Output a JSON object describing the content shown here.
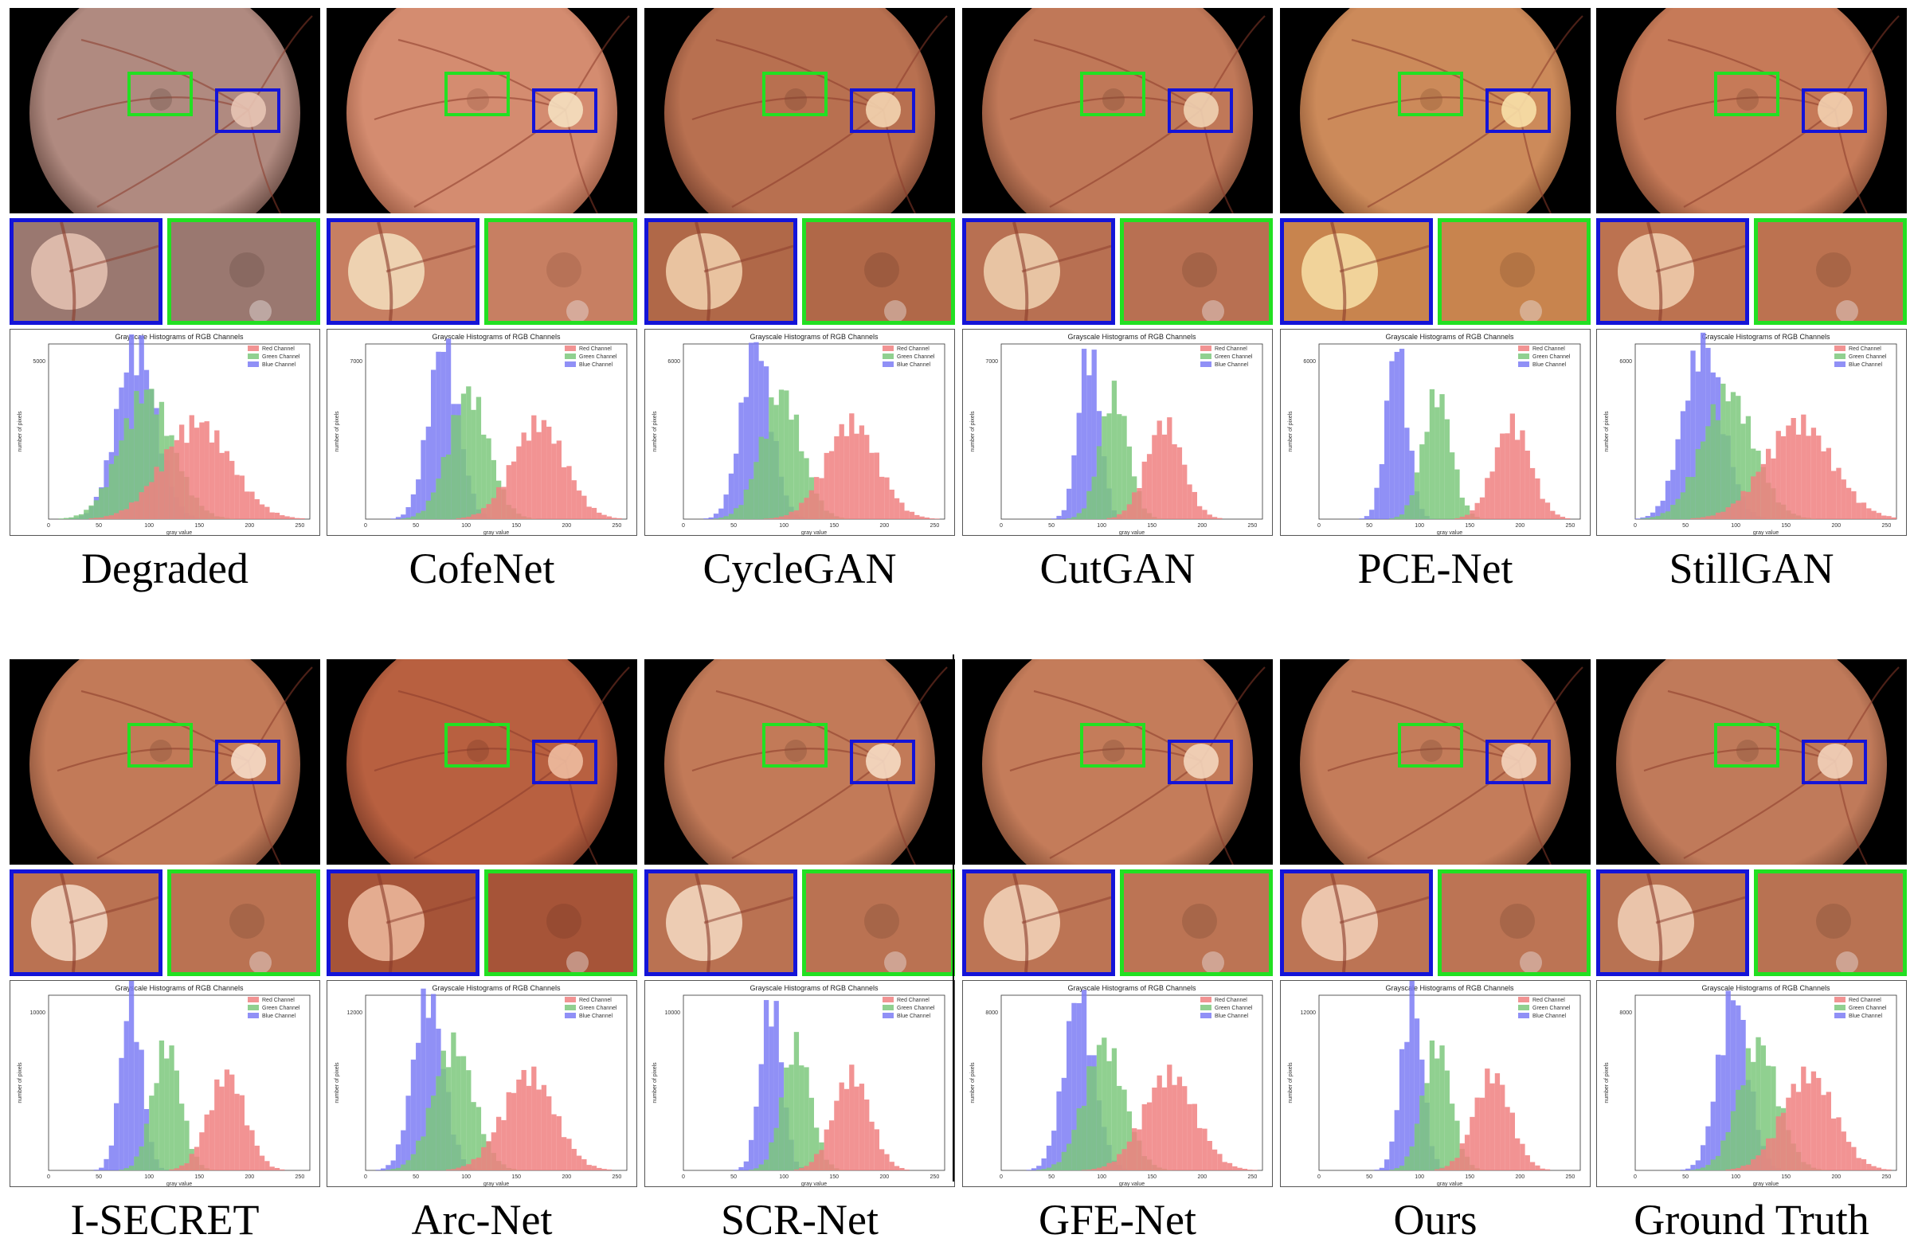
{
  "figure": {
    "rows": [
      {
        "panels": [
          {
            "id": "degraded",
            "label": "Degraded",
            "tone": {
              "fill": "#b08a80",
              "edge": "#6a4c44",
              "crop": "#9a7870",
              "disc": "#e8c4b4"
            },
            "hist": {
              "ymax_label": "5000",
              "red_center": 145,
              "green_center": 95,
              "blue_center": 85,
              "spread": "wide"
            }
          },
          {
            "id": "cofenet",
            "label": "CofeNet",
            "tone": {
              "fill": "#d48c70",
              "edge": "#9c5c44",
              "crop": "#c77f62",
              "disc": "#f5e0c0"
            },
            "hist": {
              "ymax_label": "7000",
              "red_center": 170,
              "green_center": 100,
              "blue_center": 75,
              "spread": "mid"
            }
          },
          {
            "id": "cyclegan",
            "label": "CycleGAN",
            "tone": {
              "fill": "#b87050",
              "edge": "#7a4430",
              "crop": "#b06848",
              "disc": "#f3d4b0"
            },
            "hist": {
              "ymax_label": "6000",
              "red_center": 165,
              "green_center": 95,
              "blue_center": 70,
              "spread": "mid"
            }
          },
          {
            "id": "cutgan",
            "label": "CutGAN",
            "tone": {
              "fill": "#c07858",
              "edge": "#7e4a34",
              "crop": "#b87052",
              "disc": "#f0d2b2"
            },
            "hist": {
              "ymax_label": "7000",
              "red_center": 160,
              "green_center": 110,
              "blue_center": 85,
              "spread": "narrow"
            }
          },
          {
            "id": "pcenet",
            "label": "PCE-Net",
            "tone": {
              "fill": "#cc8a5a",
              "edge": "#8c5634",
              "crop": "#c8844e",
              "disc": "#f8e0a8"
            },
            "hist": {
              "ymax_label": "6000",
              "red_center": 190,
              "green_center": 115,
              "blue_center": 75,
              "spread": "narrow"
            }
          },
          {
            "id": "stillgan",
            "label": "StillGAN",
            "tone": {
              "fill": "#c67a58",
              "edge": "#844c34",
              "crop": "#bc7250",
              "disc": "#f2d0b0"
            },
            "hist": {
              "ymax_label": "6000",
              "red_center": 160,
              "green_center": 90,
              "blue_center": 65,
              "spread": "wide"
            }
          }
        ]
      },
      {
        "panels": [
          {
            "id": "isecret",
            "label": "I-SECRET",
            "tone": {
              "fill": "#c27a58",
              "edge": "#804c36",
              "crop": "#ba7252",
              "disc": "#f6dcc8"
            },
            "hist": {
              "ymax_label": "10000",
              "red_center": 175,
              "green_center": 115,
              "blue_center": 80,
              "spread": "narrow"
            }
          },
          {
            "id": "arcnet",
            "label": "Arc-Net",
            "tone": {
              "fill": "#b86040",
              "edge": "#7c3c28",
              "crop": "#a65438",
              "disc": "#eebca0"
            },
            "hist": {
              "ymax_label": "12000",
              "red_center": 160,
              "green_center": 85,
              "blue_center": 60,
              "spread": "mid"
            }
          },
          {
            "id": "scrnet",
            "label": "SCR-Net",
            "tone": {
              "fill": "#c27a58",
              "edge": "#804c36",
              "crop": "#ba7252",
              "disc": "#f6dcc4"
            },
            "hist": {
              "ymax_label": "10000",
              "red_center": 165,
              "green_center": 110,
              "blue_center": 85,
              "spread": "narrow"
            }
          },
          {
            "id": "gfenet",
            "label": "GFE-Net",
            "tone": {
              "fill": "#c47c5a",
              "edge": "#824e36",
              "crop": "#bc7454",
              "disc": "#f4d6bc"
            },
            "hist": {
              "ymax_label": "8000",
              "red_center": 165,
              "green_center": 100,
              "blue_center": 75,
              "spread": "mid"
            }
          },
          {
            "id": "ours",
            "label": "Ours",
            "tone": {
              "fill": "#c47c5a",
              "edge": "#824e36",
              "crop": "#bc7454",
              "disc": "#f4d4bc"
            },
            "hist": {
              "ymax_label": "12000",
              "red_center": 170,
              "green_center": 115,
              "blue_center": 90,
              "spread": "narrow"
            }
          },
          {
            "id": "groundtruth",
            "label": "Ground Truth",
            "tone": {
              "fill": "#c07a5a",
              "edge": "#7e4c36",
              "crop": "#b87252",
              "disc": "#f2d2ba"
            },
            "hist": {
              "ymax_label": "8000",
              "red_center": 170,
              "green_center": 120,
              "blue_center": 95,
              "spread": "mid"
            }
          }
        ]
      }
    ],
    "histogram_text": {
      "title": "Grayscale Histograms of RGB Channels",
      "xlabel": "gray value",
      "ylabel": "number of pixels",
      "legend": [
        "Red Channel",
        "Green Channel",
        "Blue Channel"
      ],
      "xticks": [
        "0",
        "50",
        "100",
        "150",
        "200",
        "250"
      ]
    },
    "colors": {
      "box_green": "#22e022",
      "box_blue": "#1414d8",
      "hist_red": "#f08080",
      "hist_green": "#7cc87c",
      "hist_blue": "#7c7cf4"
    }
  }
}
